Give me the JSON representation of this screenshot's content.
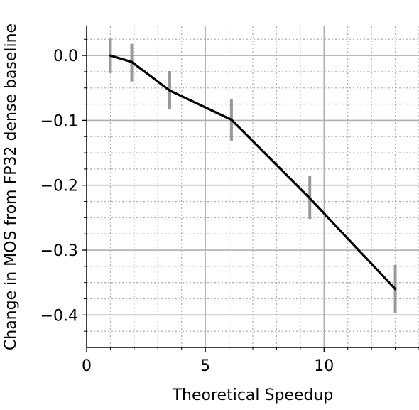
{
  "chart_data": {
    "type": "line",
    "xlabel": "Theoretical Speedup",
    "ylabel": "Change in MOS from FP32 dense baseline",
    "xlim": [
      0,
      14
    ],
    "ylim": [
      -0.45,
      0.045
    ],
    "x_ticks": [
      0,
      5,
      10
    ],
    "x_tick_labels": [
      "0",
      "5",
      "10"
    ],
    "y_ticks": [
      0.0,
      -0.1,
      -0.2,
      -0.3,
      -0.4
    ],
    "y_tick_labels": [
      "0.0",
      "−0.1",
      "−0.2",
      "−0.3",
      "−0.4"
    ],
    "x_minor_step": 1,
    "y_minor_step": 0.025,
    "grid": true,
    "line_color": "#000000",
    "errorbar_color": "#999999",
    "grid_major_color": "#b0b0b0",
    "grid_minor_color": "#b0b0b0",
    "series": [
      {
        "x": [
          1.0,
          1.9,
          3.5,
          6.1,
          9.4,
          13.0
        ],
        "y": [
          0.0,
          -0.01,
          -0.054,
          -0.099,
          -0.22,
          -0.36
        ],
        "err_low": [
          -0.027,
          -0.04,
          -0.083,
          -0.131,
          -0.252,
          -0.397
        ],
        "err_high": [
          0.026,
          0.018,
          -0.024,
          -0.067,
          -0.186,
          -0.323
        ]
      }
    ]
  }
}
